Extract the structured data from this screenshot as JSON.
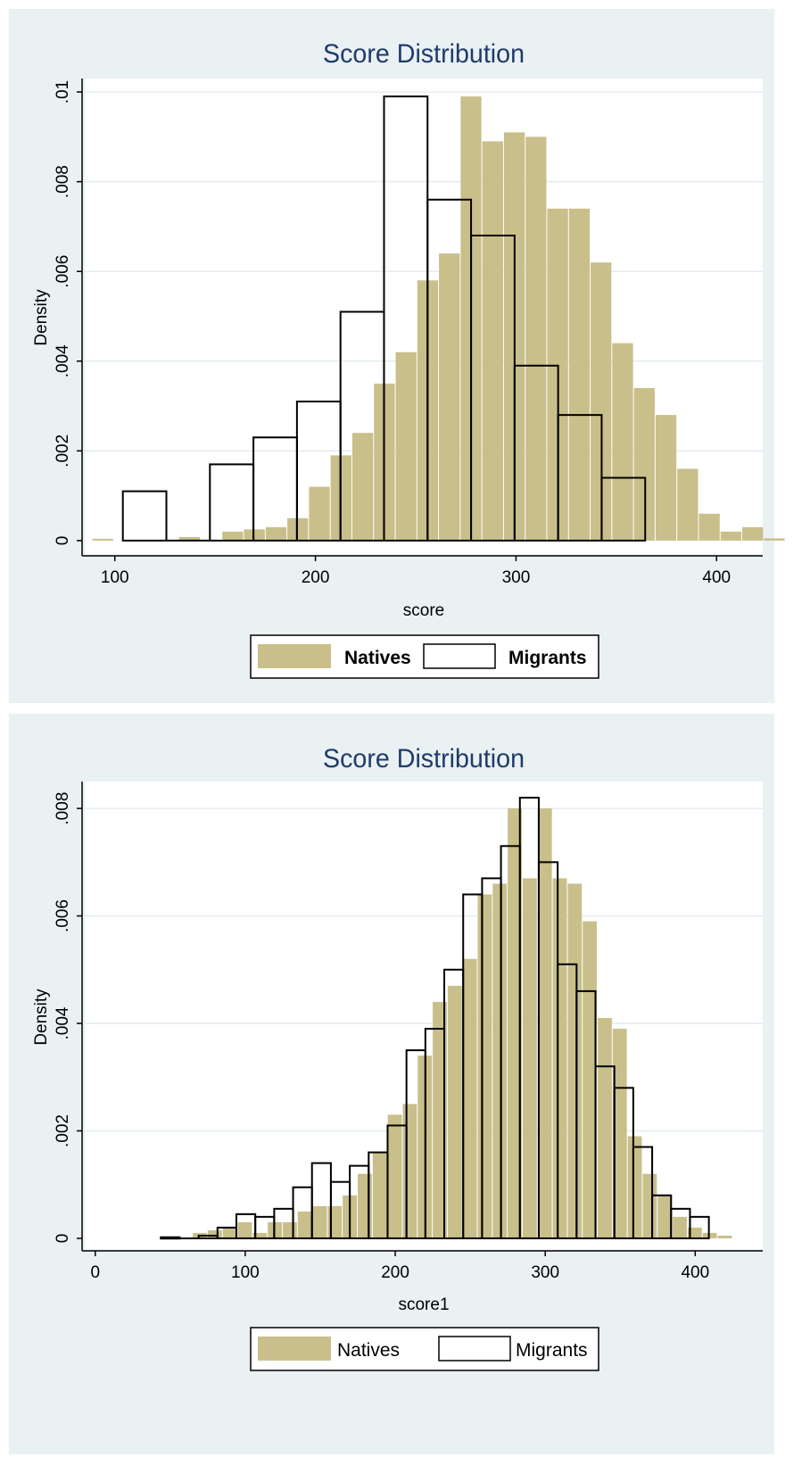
{
  "colors": {
    "background": "#ffffff",
    "panel": "#eaf1f3",
    "plot": "#ffffff",
    "grid": "#e4ecef",
    "title": "#1f3b6b",
    "natives_fill": "#c9bf8a",
    "migrants_stroke": "#000000"
  },
  "chart_data": [
    {
      "type": "bar",
      "title": "Score Distribution",
      "xlabel": "score",
      "ylabel": "Density",
      "xlim": [
        85,
        423
      ],
      "ylim": [
        -0.0003,
        0.0103
      ],
      "xticks": [
        100,
        200,
        300,
        400
      ],
      "yticks": [
        0,
        0.002,
        0.004,
        0.006,
        0.008,
        0.01
      ],
      "ytick_labels": [
        "0",
        ".002",
        ".004",
        ".006",
        ".008",
        ".01"
      ],
      "grid": true,
      "legend_position": "bottom",
      "legend": [
        "Natives",
        "Migrants"
      ],
      "series": [
        {
          "name": "Natives",
          "style": "filled",
          "bin_width": 10.8,
          "bins": [
            [
              88.8,
              4e-05
            ],
            [
              99.6,
              0
            ],
            [
              110.4,
              0
            ],
            [
              121.2,
              0
            ],
            [
              132,
              8e-05
            ],
            [
              142.8,
              0
            ],
            [
              153.6,
              0.0002
            ],
            [
              164.4,
              0.00025
            ],
            [
              175.2,
              0.0003
            ],
            [
              186,
              0.0005
            ],
            [
              196.8,
              0.0012
            ],
            [
              207.6,
              0.0019
            ],
            [
              218.4,
              0.0024
            ],
            [
              229.2,
              0.0035
            ],
            [
              240,
              0.0042
            ],
            [
              250.8,
              0.0058
            ],
            [
              261.6,
              0.0064
            ],
            [
              272.4,
              0.0099
            ],
            [
              283.2,
              0.0089
            ],
            [
              294,
              0.0091
            ],
            [
              304.8,
              0.009
            ],
            [
              315.6,
              0.0074
            ],
            [
              326.4,
              0.0074
            ],
            [
              337.2,
              0.0062
            ],
            [
              348,
              0.0044
            ],
            [
              358.8,
              0.0034
            ],
            [
              369.6,
              0.0028
            ],
            [
              380.4,
              0.0016
            ],
            [
              391.2,
              0.0006
            ],
            [
              402,
              0.0002
            ],
            [
              412.8,
              0.0003
            ],
            [
              423.6,
              5e-05
            ]
          ]
        },
        {
          "name": "Migrants",
          "style": "outline",
          "bin_width": 21.7,
          "bins": [
            [
              104,
              0.0011
            ],
            [
              125.7,
              0
            ],
            [
              147.4,
              0.0017
            ],
            [
              169.1,
              0.0023
            ],
            [
              190.8,
              0.0031
            ],
            [
              212.5,
              0.0051
            ],
            [
              234.2,
              0.0099
            ],
            [
              255.9,
              0.0076
            ],
            [
              277.6,
              0.0068
            ],
            [
              299.3,
              0.0039
            ],
            [
              321,
              0.0028
            ],
            [
              342.7,
              0.0014
            ]
          ]
        }
      ]
    },
    {
      "type": "bar",
      "title": "Score Distribution",
      "xlabel": "score1",
      "ylabel": "Density",
      "xlim": [
        -7,
        445
      ],
      "ylim": [
        -0.0002,
        0.0085
      ],
      "xticks": [
        0,
        100,
        200,
        300,
        400
      ],
      "yticks": [
        0,
        0.002,
        0.004,
        0.006,
        0.008
      ],
      "ytick_labels": [
        "0",
        ".002",
        ".004",
        ".006",
        ".008"
      ],
      "grid": true,
      "legend_position": "bottom",
      "legend": [
        "Natives",
        "Migrants"
      ],
      "series": [
        {
          "name": "Natives",
          "style": "filled",
          "bin_width": 10,
          "bins": [
            [
              65,
              0.0001
            ],
            [
              75,
              0.00015
            ],
            [
              85,
              0.0002
            ],
            [
              95,
              0.0003
            ],
            [
              105,
              0.0001
            ],
            [
              115,
              0.0003
            ],
            [
              125,
              0.0003
            ],
            [
              135,
              0.0005
            ],
            [
              145,
              0.0006
            ],
            [
              155,
              0.0006
            ],
            [
              165,
              0.0008
            ],
            [
              175,
              0.0012
            ],
            [
              185,
              0.0016
            ],
            [
              195,
              0.0023
            ],
            [
              205,
              0.0025
            ],
            [
              215,
              0.0034
            ],
            [
              225,
              0.0044
            ],
            [
              235,
              0.0047
            ],
            [
              245,
              0.0052
            ],
            [
              255,
              0.0064
            ],
            [
              265,
              0.0066
            ],
            [
              275,
              0.008
            ],
            [
              285,
              0.0067
            ],
            [
              295,
              0.008
            ],
            [
              305,
              0.0067
            ],
            [
              315,
              0.0066
            ],
            [
              325,
              0.0059
            ],
            [
              335,
              0.0041
            ],
            [
              345,
              0.0039
            ],
            [
              355,
              0.0019
            ],
            [
              365,
              0.0012
            ],
            [
              375,
              0.0008
            ],
            [
              385,
              0.0004
            ],
            [
              395,
              0.0002
            ],
            [
              405,
              0.0001
            ],
            [
              415,
              5e-05
            ]
          ]
        },
        {
          "name": "Migrants",
          "style": "outline",
          "bin_width": 12.6,
          "bins": [
            [
              43.7,
              2e-05
            ],
            [
              56.3,
              0
            ],
            [
              68.9,
              5e-05
            ],
            [
              81.5,
              0.0002
            ],
            [
              94.1,
              0.00045
            ],
            [
              106.7,
              0.0004
            ],
            [
              119.3,
              0.00055
            ],
            [
              131.9,
              0.00095
            ],
            [
              144.5,
              0.0014
            ],
            [
              157.1,
              0.00105
            ],
            [
              169.7,
              0.00135
            ],
            [
              182.3,
              0.0016
            ],
            [
              194.9,
              0.0021
            ],
            [
              207.5,
              0.0035
            ],
            [
              220.1,
              0.0039
            ],
            [
              232.7,
              0.005
            ],
            [
              245.3,
              0.0064
            ],
            [
              257.9,
              0.0067
            ],
            [
              270.5,
              0.0073
            ],
            [
              283.1,
              0.0082
            ],
            [
              295.7,
              0.007
            ],
            [
              308.3,
              0.0051
            ],
            [
              320.9,
              0.0046
            ],
            [
              333.5,
              0.0032
            ],
            [
              346.1,
              0.0028
            ],
            [
              358.7,
              0.0017
            ],
            [
              371.3,
              0.0008
            ],
            [
              383.9,
              0.00055
            ],
            [
              396.5,
              0.0004
            ]
          ]
        }
      ]
    }
  ]
}
